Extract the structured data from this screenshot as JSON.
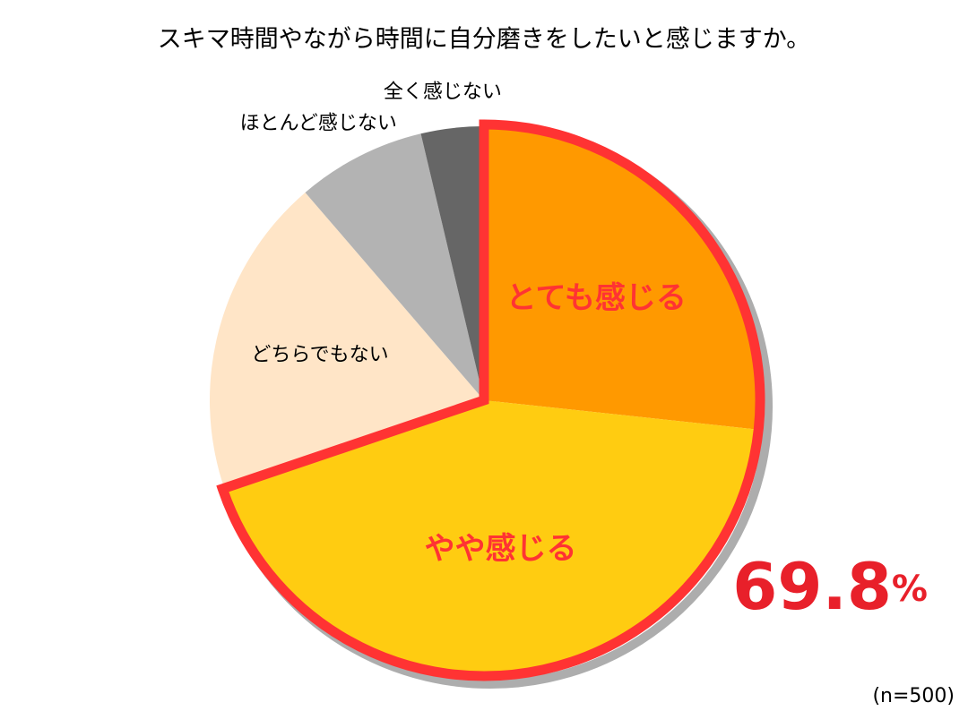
{
  "chart_data": {
    "type": "pie",
    "title": "スキマ時間やながら時間に自分磨きをしたいと感じますか。",
    "categories": [
      "とても感じる",
      "やや感じる",
      "どちらでもない",
      "ほとんど感じない",
      "全く感じない"
    ],
    "values": [
      26.7,
      43.1,
      18.9,
      7.6,
      3.7
    ],
    "colors": [
      "#FF9900",
      "#FFCC11",
      "#FFE5C7",
      "#B3B3B3",
      "#666666"
    ],
    "highlight": {
      "label": "69.8%",
      "value": 69.8,
      "color": "#E8202A"
    },
    "note": "(n=500)"
  }
}
